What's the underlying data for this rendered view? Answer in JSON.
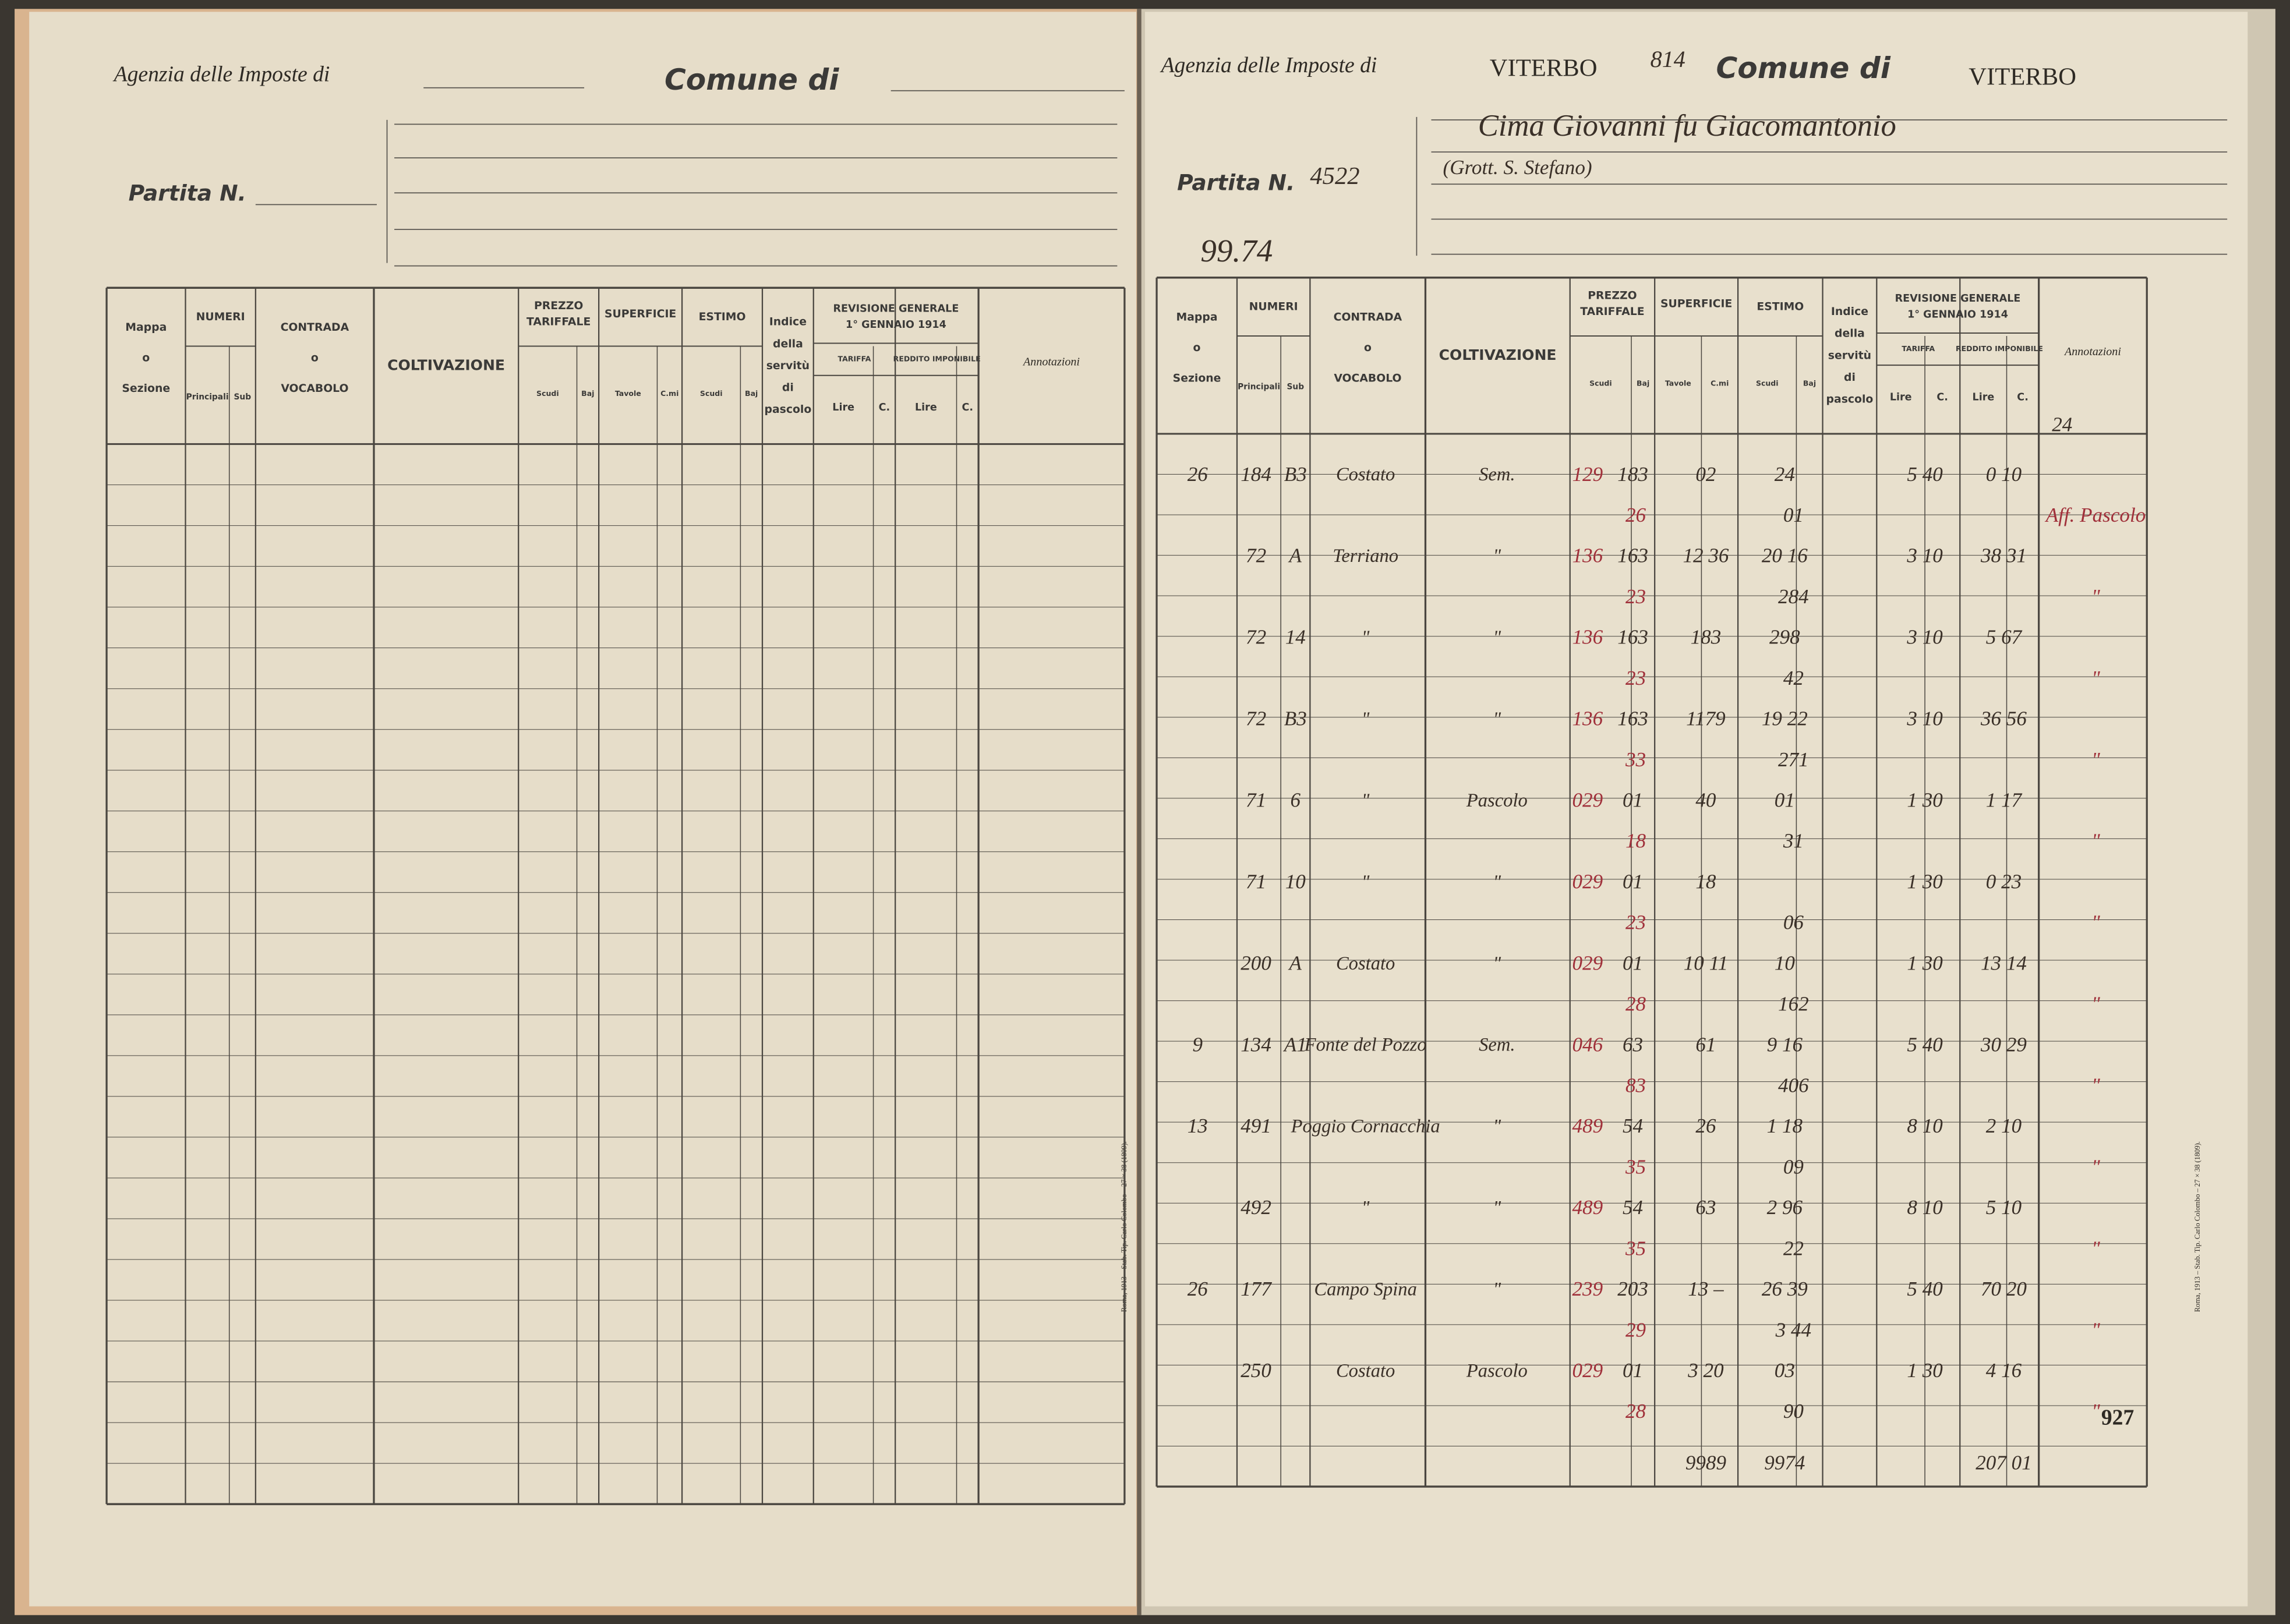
{
  "left": {
    "agenzia": "Agenzia delle Imposte di",
    "comune": "Comune di",
    "partita": "Partita N.",
    "printer": "Roma, 1913 – Stab. Tip. Carlo Colombo – 27 × 38 (1809)."
  },
  "right": {
    "agenzia": "Agenzia delle Imposte di",
    "agenzia_value": "VITERBO",
    "number": "814",
    "comune": "Comune di",
    "comune_value": "VITERBO",
    "partita": "Partita N.",
    "partita_value": "4522",
    "owner": "Cima Giovanni fu Giacomantonio",
    "residence": "(Grott. S. Stefano)",
    "note": "99.74",
    "page_mark": "24",
    "printer": "Roma, 1913 – Stab. Tip. Carlo Colombo – 27 × 38 (1809).",
    "rows": [
      {
        "mappa": "26",
        "principali": "184",
        "sub": "B3",
        "contrada": "Costato",
        "coltivazione": "Sem.",
        "prezzo_red": "129",
        "prezzo": "183",
        "classe": "26",
        "superficie": "02",
        "estimo": "24",
        "estimo_2": "01",
        "tariffa": "5 40",
        "reddito": "0 10",
        "annotazione": "Aff. Pascolo"
      },
      {
        "principali": "72",
        "sub": "A",
        "contrada": "Terriano",
        "coltivazione": "\"",
        "prezzo_red": "136",
        "prezzo": "163",
        "classe": "23",
        "superficie": "12 36",
        "estimo": "20 16",
        "estimo_2": "284",
        "tariffa": "3 10",
        "reddito": "38 31",
        "annotazione": "\""
      },
      {
        "principali": "72",
        "sub": "14",
        "contrada": "\"",
        "coltivazione": "\"",
        "prezzo_red": "136",
        "prezzo": "163",
        "classe": "23",
        "superficie": "183",
        "estimo": "298",
        "estimo_2": "42",
        "tariffa": "3 10",
        "reddito": "5 67",
        "annotazione": "\""
      },
      {
        "principali": "72",
        "sub": "B3",
        "contrada": "\"",
        "coltivazione": "\"",
        "prezzo_red": "136",
        "prezzo": "163",
        "classe": "33",
        "superficie": "1179",
        "estimo": "19 22",
        "estimo_2": "271",
        "tariffa": "3 10",
        "reddito": "36 56",
        "annotazione": "\""
      },
      {
        "principali": "71",
        "sub": "6",
        "contrada": "\"",
        "coltivazione": "Pascolo",
        "prezzo_red": "029",
        "prezzo": "01",
        "classe": "18",
        "superficie": "40",
        "estimo": "01",
        "estimo_2": "31",
        "tariffa": "1 30",
        "reddito": "1 17",
        "annotazione": "\""
      },
      {
        "principali": "71",
        "sub": "10",
        "contrada": "\"",
        "coltivazione": "\"",
        "prezzo_red": "029",
        "prezzo": "01",
        "classe": "23",
        "superficie": "18",
        "estimo_2": "06",
        "tariffa": "1 30",
        "reddito": "0 23",
        "annotazione": "\""
      },
      {
        "principali": "200",
        "sub": "A",
        "contrada": "Costato",
        "coltivazione": "\"",
        "prezzo_red": "029",
        "prezzo": "01",
        "classe": "28",
        "superficie": "10 11",
        "estimo": "10",
        "estimo_2": "162",
        "tariffa": "1 30",
        "reddito": "13 14",
        "annotazione": "\""
      },
      {
        "mappa": "9",
        "principali": "134",
        "sub": "A1",
        "contrada": "Fonte del Pozzo",
        "coltivazione": "Sem.",
        "prezzo_red": "046",
        "prezzo": "63",
        "classe": "83",
        "superficie": "61",
        "estimo": "9 16",
        "estimo_2": "406",
        "tariffa": "5 40",
        "reddito": "30 29",
        "annotazione": "\""
      },
      {
        "mappa": "13",
        "principali": "491",
        "contrada": "Poggio Cornacchia",
        "coltivazione": "\"",
        "prezzo_red": "489",
        "prezzo": "54",
        "classe": "35",
        "superficie": "26",
        "estimo": "1 18",
        "estimo_2": "09",
        "tariffa": "8 10",
        "reddito": "2 10",
        "annotazione": "\""
      },
      {
        "principali": "492",
        "contrada": "\"",
        "coltivazione": "\"",
        "prezzo_red": "489",
        "prezzo": "54",
        "classe": "35",
        "superficie": "63",
        "estimo": "2 96",
        "estimo_2": "22",
        "tariffa": "8 10",
        "reddito": "5 10",
        "annotazione": "\""
      },
      {
        "mappa": "26",
        "principali": "177",
        "contrada": "Campo Spina",
        "coltivazione": "\"",
        "prezzo_red": "239",
        "prezzo": "203",
        "classe": "29",
        "superficie": "13 –",
        "estimo": "26 39",
        "estimo_2": "3 44",
        "tariffa": "5 40",
        "reddito": "70 20",
        "annotazione": "\""
      },
      {
        "principali": "250",
        "contrada": "Costato",
        "coltivazione": "Pascolo",
        "prezzo_red": "029",
        "prezzo": "01",
        "classe": "28",
        "superficie": "3 20",
        "estimo": "03",
        "estimo_2": "90",
        "tariffa": "1 30",
        "reddito": "4 16",
        "annotazione": "\""
      }
    ],
    "totals": {
      "superficie": "9989",
      "estimo": "9974",
      "reddito": "207 01"
    },
    "final_note": "927"
  },
  "columns": {
    "mappa": [
      "Mappa",
      "o",
      "Sezione"
    ],
    "numeri": "NUMERI",
    "principali": "Principali",
    "sub": "Sub",
    "contrada": [
      "CONTRADA",
      "o",
      "VOCABOLO"
    ],
    "coltivazione": "COLTIVAZIONE",
    "prezzo": [
      "PREZZO",
      "TARIFFALE"
    ],
    "scudi": "Scudi",
    "baj": "Baj",
    "superficie": "SUPERFICIE",
    "tavole": "Tavole",
    "cmi": "C.mi",
    "estimo": "ESTIMO",
    "indice": [
      "Indice",
      "della",
      "servitù",
      "di",
      "pascolo"
    ],
    "revisione": [
      "REVISIONE GENERALE",
      "1° GENNAIO 1914"
    ],
    "tariffa": "TARIFFA",
    "reddito": "REDDITO IMPONIBILE",
    "lire": "Lire",
    "c": "C.",
    "annotazioni": "Annotazioni"
  }
}
